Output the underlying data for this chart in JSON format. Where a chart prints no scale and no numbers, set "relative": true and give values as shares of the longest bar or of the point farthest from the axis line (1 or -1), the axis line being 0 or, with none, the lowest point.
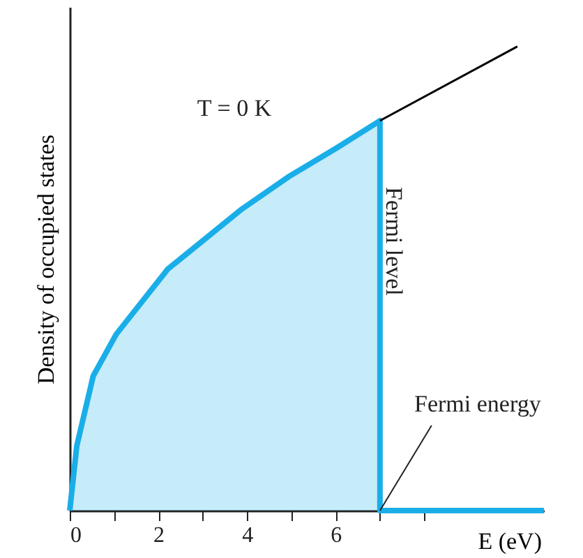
{
  "chart_data": {
    "type": "area",
    "relative": true,
    "xlabel": "E (eV)",
    "ylabel": "Density of occupied states",
    "xlim": [
      0,
      10.7
    ],
    "xticks": [
      0,
      {
        "value": 1,
        "label": null
      },
      2,
      {
        "value": 3,
        "label": null
      },
      4,
      {
        "value": 5,
        "label": null
      },
      6,
      {
        "value": 7,
        "label": null
      },
      {
        "value": 8,
        "label": null
      }
    ],
    "series": [
      {
        "color": "#1aaee8",
        "x": [
          0,
          0.16,
          0.53,
          1.05,
          2.21,
          3.89,
          4.95,
          6,
          7,
          7,
          10.7
        ],
        "values": [
          0,
          0.14,
          0.29,
          0.38,
          0.52,
          0.65,
          0.72,
          0.78,
          0.84,
          0,
          0
        ]
      },
      {
        "type": "line",
        "color": "#000000",
        "x": [
          7,
          10.1
        ],
        "values": [
          0.84,
          1
        ]
      }
    ],
    "annotations": [
      "T = 0 K",
      "Fermi level",
      {
        "text": "Fermi energy",
        "x": 7,
        "y": 0
      }
    ],
    "grid": false
  }
}
